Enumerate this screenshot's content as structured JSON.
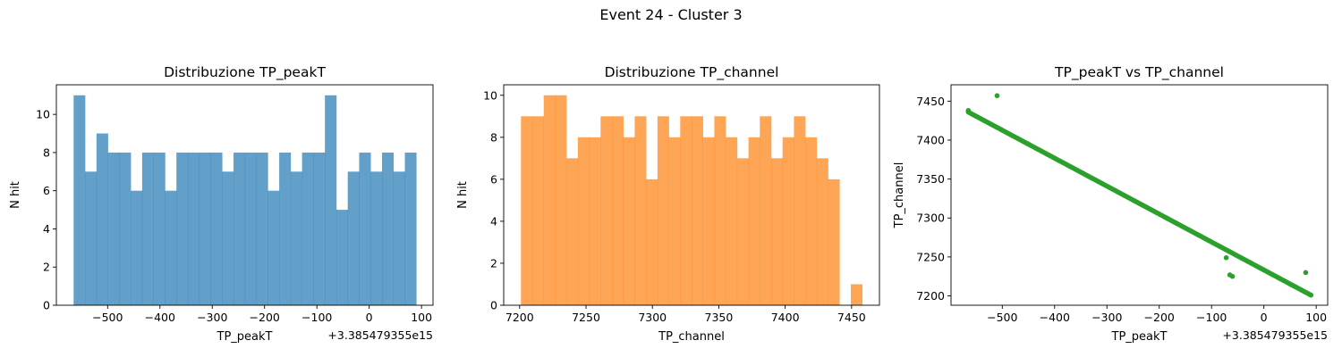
{
  "figure": {
    "suptitle": "Event 24 - Cluster 3"
  },
  "chart_data": [
    {
      "type": "bar",
      "subtype": "histogram",
      "title": "Distribuzione TP_peakT",
      "xlabel": "TP_peakT",
      "ylabel": "N hit",
      "offset_label": "+3.385479355e15",
      "color": "#1f77b4",
      "xlim": [
        -598,
        122
      ],
      "ylim": [
        0,
        11.55
      ],
      "x_range": [
        -565,
        90
      ],
      "values": [
        11,
        7,
        9,
        8,
        8,
        6,
        8,
        8,
        6,
        8,
        8,
        8,
        8,
        7,
        8,
        8,
        8,
        6,
        8,
        7,
        8,
        8,
        11,
        5,
        7,
        8,
        7,
        8,
        7,
        8
      ],
      "xticks": [
        -500,
        -400,
        -300,
        -200,
        -100,
        0,
        100
      ],
      "xtick_labels": [
        "−500",
        "−400",
        "−300",
        "−200",
        "−100",
        "0",
        "100"
      ],
      "yticks": [
        0,
        2,
        4,
        6,
        8,
        10
      ],
      "ytick_labels": [
        "0",
        "2",
        "4",
        "6",
        "8",
        "10"
      ]
    },
    {
      "type": "bar",
      "subtype": "histogram",
      "title": "Distribuzione TP_channel",
      "xlabel": "TP_channel",
      "ylabel": "N hit",
      "color": "#ff7f0e",
      "xlim": [
        7188,
        7471
      ],
      "ylim": [
        0,
        10.5
      ],
      "x_range": [
        7201,
        7458
      ],
      "values": [
        9,
        9,
        10,
        10,
        7,
        8,
        8,
        9,
        9,
        8,
        9,
        6,
        9,
        8,
        9,
        9,
        8,
        9,
        8,
        7,
        8,
        9,
        7,
        8,
        9,
        8,
        7,
        6,
        0,
        1
      ],
      "xticks": [
        7200,
        7250,
        7300,
        7350,
        7400,
        7450
      ],
      "xtick_labels": [
        "7200",
        "7250",
        "7300",
        "7350",
        "7400",
        "7450"
      ],
      "yticks": [
        0,
        2,
        4,
        6,
        8,
        10
      ],
      "ytick_labels": [
        "0",
        "2",
        "4",
        "6",
        "8",
        "10"
      ]
    },
    {
      "type": "scatter",
      "title": "TP_peakT vs TP_channel",
      "xlabel": "TP_peakT",
      "ylabel": "TP_channel",
      "offset_label": "+3.385479355e15",
      "color": "#2ca02c",
      "xlim": [
        -598,
        122
      ],
      "ylim": [
        7188,
        7471
      ],
      "line_segment": {
        "x_start": -565,
        "y_start": 7436,
        "x_end": 90,
        "y_end": 7201,
        "n_points": 240
      },
      "outliers": [
        {
          "x": -565,
          "y": 7438
        },
        {
          "x": -510,
          "y": 7457
        },
        {
          "x": -72,
          "y": 7249
        },
        {
          "x": -65,
          "y": 7227
        },
        {
          "x": -60,
          "y": 7225
        },
        {
          "x": 80,
          "y": 7230
        }
      ],
      "xticks": [
        -500,
        -400,
        -300,
        -200,
        -100,
        0,
        100
      ],
      "xtick_labels": [
        "−500",
        "−400",
        "−300",
        "−200",
        "−100",
        "0",
        "100"
      ],
      "yticks": [
        7200,
        7250,
        7300,
        7350,
        7400,
        7450
      ],
      "ytick_labels": [
        "7200",
        "7250",
        "7300",
        "7350",
        "7400",
        "7450"
      ]
    }
  ]
}
